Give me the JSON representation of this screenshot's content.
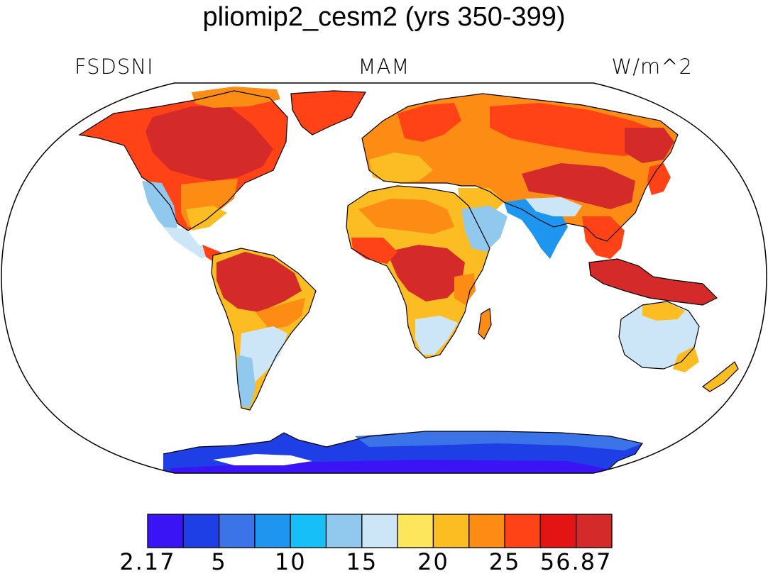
{
  "title": "pliomip2_cesm2 (yrs 350-399)",
  "variable_label": "FSDSNI",
  "season_label": "MAM",
  "units_label": "W/m^2",
  "map": {
    "projection": "robinson",
    "land_only": true,
    "ocean_color": "#ffffff",
    "coastline_color": "#000000"
  },
  "colorbar": {
    "colors": [
      "#3b14f5",
      "#1f3fe6",
      "#3b74e8",
      "#1e96f0",
      "#16bff7",
      "#90c8ee",
      "#cde6f7",
      "#fde65a",
      "#fcbd23",
      "#fc8c14",
      "#ff4317",
      "#e51414",
      "#d42a2a"
    ],
    "tick_labels": [
      "2.17",
      "5",
      "10",
      "15",
      "20",
      "25",
      "56.87"
    ]
  }
}
